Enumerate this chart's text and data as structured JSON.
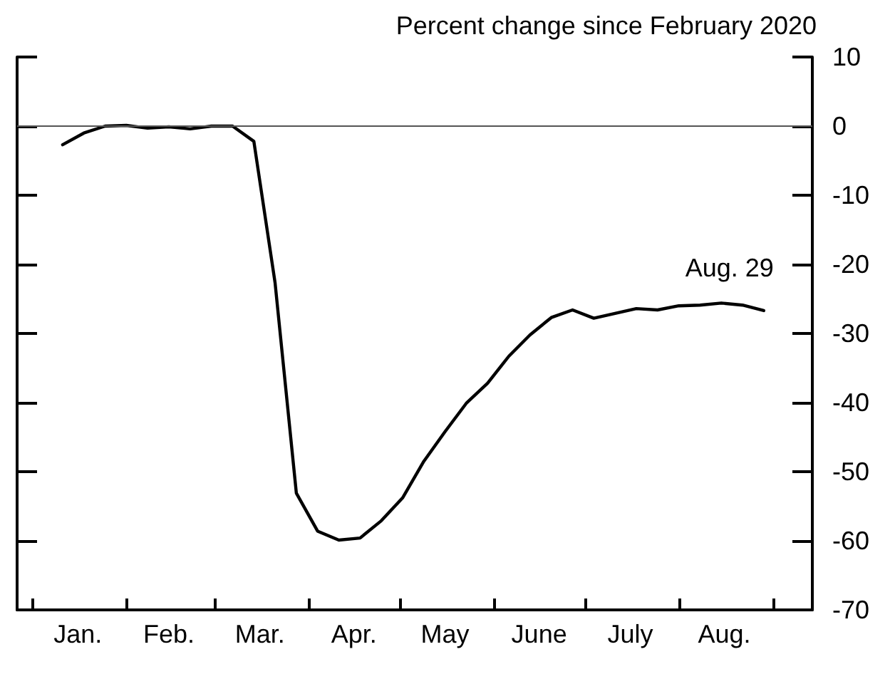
{
  "chart_data": {
    "type": "line",
    "title": "Percent change since February 2020",
    "x": [
      "2020-01-11",
      "2020-01-18",
      "2020-01-25",
      "2020-02-01",
      "2020-02-08",
      "2020-02-15",
      "2020-02-22",
      "2020-02-29",
      "2020-03-07",
      "2020-03-14",
      "2020-03-21",
      "2020-03-28",
      "2020-04-04",
      "2020-04-11",
      "2020-04-18",
      "2020-04-25",
      "2020-05-02",
      "2020-05-09",
      "2020-05-16",
      "2020-05-23",
      "2020-05-30",
      "2020-06-06",
      "2020-06-13",
      "2020-06-20",
      "2020-06-27",
      "2020-07-04",
      "2020-07-11",
      "2020-07-18",
      "2020-07-25",
      "2020-08-01",
      "2020-08-08",
      "2020-08-15",
      "2020-08-22",
      "2020-08-29"
    ],
    "series": [
      {
        "color": "#000000",
        "values": [
          -2.7,
          -1.0,
          0,
          0.1,
          -0.3,
          -0.1,
          -0.4,
          0,
          0,
          -2.2,
          -22.7,
          -53.1,
          -58.6,
          -59.9,
          -59.6,
          -57.1,
          -53.8,
          -48.5,
          -44.2,
          -40.1,
          -37.2,
          -33.3,
          -30.2,
          -27.7,
          -26.6,
          -27.8,
          -27.1,
          -26.4,
          -26.6,
          -26.0,
          -25.9,
          -25.6,
          -25.9,
          -26.7
        ]
      }
    ],
    "xlim": [
      "2019-12-27",
      "2020-09-14"
    ],
    "xticks": [
      {
        "value": "2020-01-01",
        "label": null
      },
      {
        "value": "2020-01-16",
        "label": "Jan."
      },
      {
        "value": "2020-02-01",
        "label": null
      },
      {
        "value": "2020-02-15",
        "label": "Feb."
      },
      {
        "value": "2020-03-01",
        "label": null
      },
      {
        "value": "2020-03-16",
        "label": "Mar."
      },
      {
        "value": "2020-04-01",
        "label": null
      },
      {
        "value": "2020-04-16",
        "label": "Apr."
      },
      {
        "value": "2020-05-01",
        "label": null
      },
      {
        "value": "2020-05-16",
        "label": "May"
      },
      {
        "value": "2020-06-01",
        "label": null
      },
      {
        "value": "2020-06-16",
        "label": "June"
      },
      {
        "value": "2020-07-01",
        "label": null
      },
      {
        "value": "2020-07-16",
        "label": "July"
      },
      {
        "value": "2020-08-01",
        "label": null
      },
      {
        "value": "2020-08-16",
        "label": "Aug."
      },
      {
        "value": "2020-09-01",
        "label": null
      }
    ],
    "ylim": [
      -70,
      10
    ],
    "yticks": [
      -70,
      -60,
      -50,
      -40,
      -30,
      -20,
      -10,
      0,
      10
    ],
    "ref_lines": [
      {
        "axis": "y",
        "value": 0,
        "color": "#555555"
      }
    ],
    "annotations": [
      {
        "text": "Aug. 29",
        "x": "2020-08-29",
        "y": -26.7
      }
    ],
    "grid": false,
    "marker": "none",
    "line_style": "solid"
  }
}
